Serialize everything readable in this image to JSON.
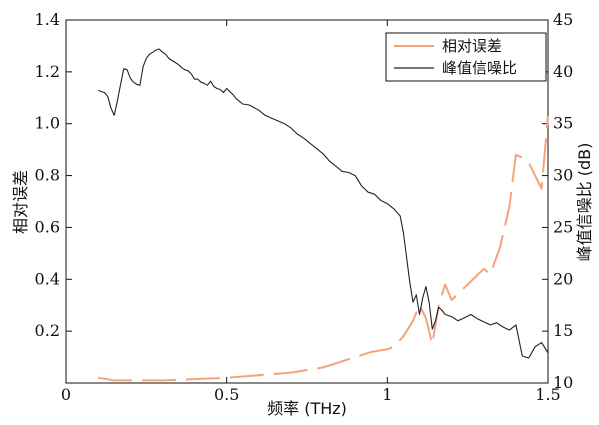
{
  "chart_data": {
    "type": "line",
    "x_axis": {
      "label": "频率 (THz)",
      "range": [
        0,
        1.5
      ],
      "ticks": [
        0,
        0.5,
        1,
        1.5
      ],
      "tick_labels": [
        "0",
        "0.5",
        "1",
        "1.5"
      ]
    },
    "y_left": {
      "label": "相对误差",
      "range": [
        0,
        1.4
      ],
      "ticks": [
        0.2,
        0.4,
        0.6,
        0.8,
        1.0,
        1.2,
        1.4
      ],
      "tick_labels": [
        "0.2",
        "0.4",
        "0.6",
        "0.8",
        "1.0",
        "1.2",
        "1.4"
      ]
    },
    "y_right": {
      "label": "峰值信噪比 (dB)",
      "range": [
        10,
        45
      ],
      "ticks": [
        10,
        15,
        20,
        25,
        30,
        35,
        40,
        45
      ],
      "tick_labels": [
        "10",
        "15",
        "20",
        "25",
        "30",
        "35",
        "40",
        "45"
      ]
    },
    "legend": {
      "position": "top-right",
      "entries": [
        "相对误差",
        "峰值信噪比"
      ]
    },
    "series": [
      {
        "name": "相对误差",
        "axis": "left",
        "color": "#f5a27f",
        "style": "dashed",
        "x": [
          0.1,
          0.15,
          0.2,
          0.3,
          0.4,
          0.5,
          0.55,
          0.6,
          0.65,
          0.7,
          0.75,
          0.8,
          0.85,
          0.9,
          0.95,
          1.0,
          1.02,
          1.05,
          1.08,
          1.1,
          1.12,
          1.14,
          1.16,
          1.18,
          1.2,
          1.25,
          1.3,
          1.32,
          1.35,
          1.38,
          1.4,
          1.42,
          1.44,
          1.46,
          1.48,
          1.5
        ],
        "values": [
          0.02,
          0.01,
          0.01,
          0.01,
          0.015,
          0.02,
          0.025,
          0.03,
          0.035,
          0.04,
          0.05,
          0.06,
          0.08,
          0.1,
          0.12,
          0.13,
          0.14,
          0.18,
          0.24,
          0.3,
          0.25,
          0.15,
          0.3,
          0.38,
          0.32,
          0.38,
          0.44,
          0.42,
          0.52,
          0.68,
          0.88,
          0.87,
          0.85,
          0.8,
          0.75,
          1.03
        ]
      },
      {
        "name": "峰值信噪比",
        "axis": "right",
        "color": "#222222",
        "style": "solid",
        "x": [
          0.1,
          0.12,
          0.13,
          0.14,
          0.15,
          0.16,
          0.17,
          0.18,
          0.19,
          0.2,
          0.21,
          0.22,
          0.23,
          0.24,
          0.25,
          0.26,
          0.27,
          0.28,
          0.29,
          0.3,
          0.31,
          0.32,
          0.33,
          0.34,
          0.35,
          0.36,
          0.37,
          0.38,
          0.39,
          0.4,
          0.41,
          0.42,
          0.43,
          0.44,
          0.45,
          0.46,
          0.47,
          0.48,
          0.49,
          0.5,
          0.51,
          0.52,
          0.53,
          0.55,
          0.57,
          0.6,
          0.62,
          0.65,
          0.68,
          0.7,
          0.72,
          0.74,
          0.76,
          0.78,
          0.8,
          0.82,
          0.84,
          0.86,
          0.88,
          0.9,
          0.92,
          0.94,
          0.96,
          0.98,
          1.0,
          1.02,
          1.04,
          1.05,
          1.06,
          1.07,
          1.08,
          1.09,
          1.1,
          1.11,
          1.12,
          1.13,
          1.14,
          1.15,
          1.16,
          1.17,
          1.18,
          1.2,
          1.22,
          1.24,
          1.26,
          1.28,
          1.3,
          1.32,
          1.34,
          1.36,
          1.38,
          1.4,
          1.42,
          1.44,
          1.46,
          1.48,
          1.5
        ],
        "values": [
          38.2,
          38,
          37.6,
          36.5,
          35.8,
          37.2,
          38.8,
          40.3,
          40.2,
          39.4,
          39,
          38.8,
          38.7,
          40.5,
          41.3,
          41.7,
          41.9,
          42.1,
          42.2,
          41.9,
          41.7,
          41.3,
          41.1,
          40.9,
          40.7,
          40.4,
          40.2,
          40.1,
          39.8,
          39.3,
          39.3,
          39,
          38.9,
          38.7,
          39.1,
          38.6,
          38.4,
          38.3,
          38,
          38.4,
          38.1,
          37.8,
          37.4,
          36.9,
          36.8,
          36.3,
          35.8,
          35.4,
          35,
          34.6,
          34,
          33.6,
          33.1,
          32.6,
          32.1,
          31.4,
          30.9,
          30.4,
          30.3,
          30,
          29,
          28.4,
          28.2,
          27.6,
          27.3,
          26.8,
          26.1,
          24.5,
          22.1,
          19.7,
          17.8,
          18.5,
          16.6,
          18.2,
          19.3,
          17.8,
          15.2,
          16,
          17.3,
          17,
          16.6,
          16.4,
          16,
          16.3,
          16.6,
          16.2,
          15.9,
          15.6,
          15.8,
          15.4,
          15.1,
          15.6,
          12.6,
          12.4,
          13.5,
          13.9,
          12.9
        ]
      }
    ]
  }
}
